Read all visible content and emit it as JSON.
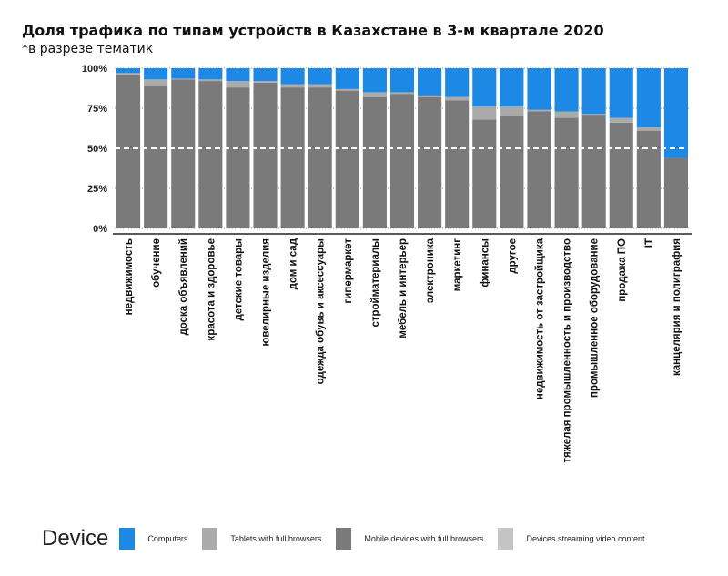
{
  "title": "Доля трафика по типам устройств в Казахстане в 3-м квартале 2020",
  "subtitle": "*в разрезе тематик",
  "chart_data": {
    "type": "bar",
    "stacked": true,
    "percent": true,
    "categories": [
      "недвижимость",
      "обучение",
      "доска объявлений",
      "красота и здоровье",
      "детские товары",
      "ювелирные изделия",
      "дом и сад",
      "одежда обувь и аксессуары",
      "гипермаркет",
      "стройматериалы",
      "мебель и интерьер",
      "электроника",
      "маркетинг",
      "финансы",
      "другое",
      "недвижимость от застройщика",
      "тяжелая промышленность и производство",
      "промышленное оборудование",
      "продажа ПО",
      "IT",
      "канцелярия и полиграфия"
    ],
    "series": [
      {
        "name": "Mobile devices with full browsers",
        "color": "#7a7a7a",
        "values": [
          96,
          89,
          93,
          92,
          88,
          91,
          88,
          88,
          86,
          82,
          84,
          82,
          80,
          68,
          70,
          73,
          69,
          71,
          66,
          61,
          44
        ]
      },
      {
        "name": "Tablets with full browsers",
        "color": "#aaaaaa",
        "values": [
          1,
          4,
          0.5,
          1,
          4,
          1,
          2,
          2,
          1,
          3,
          1,
          1,
          2,
          8,
          6,
          1,
          4,
          0.5,
          3,
          2,
          0
        ]
      },
      {
        "name": "Computers",
        "color": "#1e88e5",
        "values": [
          3,
          7,
          6.5,
          7,
          8,
          8,
          10,
          10,
          13,
          15,
          15,
          17,
          18,
          24,
          24,
          26,
          27,
          28.5,
          31,
          37,
          56
        ]
      }
    ],
    "legend_title": "Device",
    "legend": [
      "Computers",
      "Tablets with full browsers",
      "Mobile devices with full browsers",
      "Devices streaming video content"
    ],
    "legend_colors": [
      "#1e88e5",
      "#aaaaaa",
      "#7a7a7a",
      "#c4c4c4"
    ],
    "legend_placement": "bottom",
    "yticks": [
      "0%",
      "25%",
      "50%",
      "75%",
      "100%"
    ],
    "ylim": [
      0,
      100
    ],
    "reference_line": 50
  }
}
